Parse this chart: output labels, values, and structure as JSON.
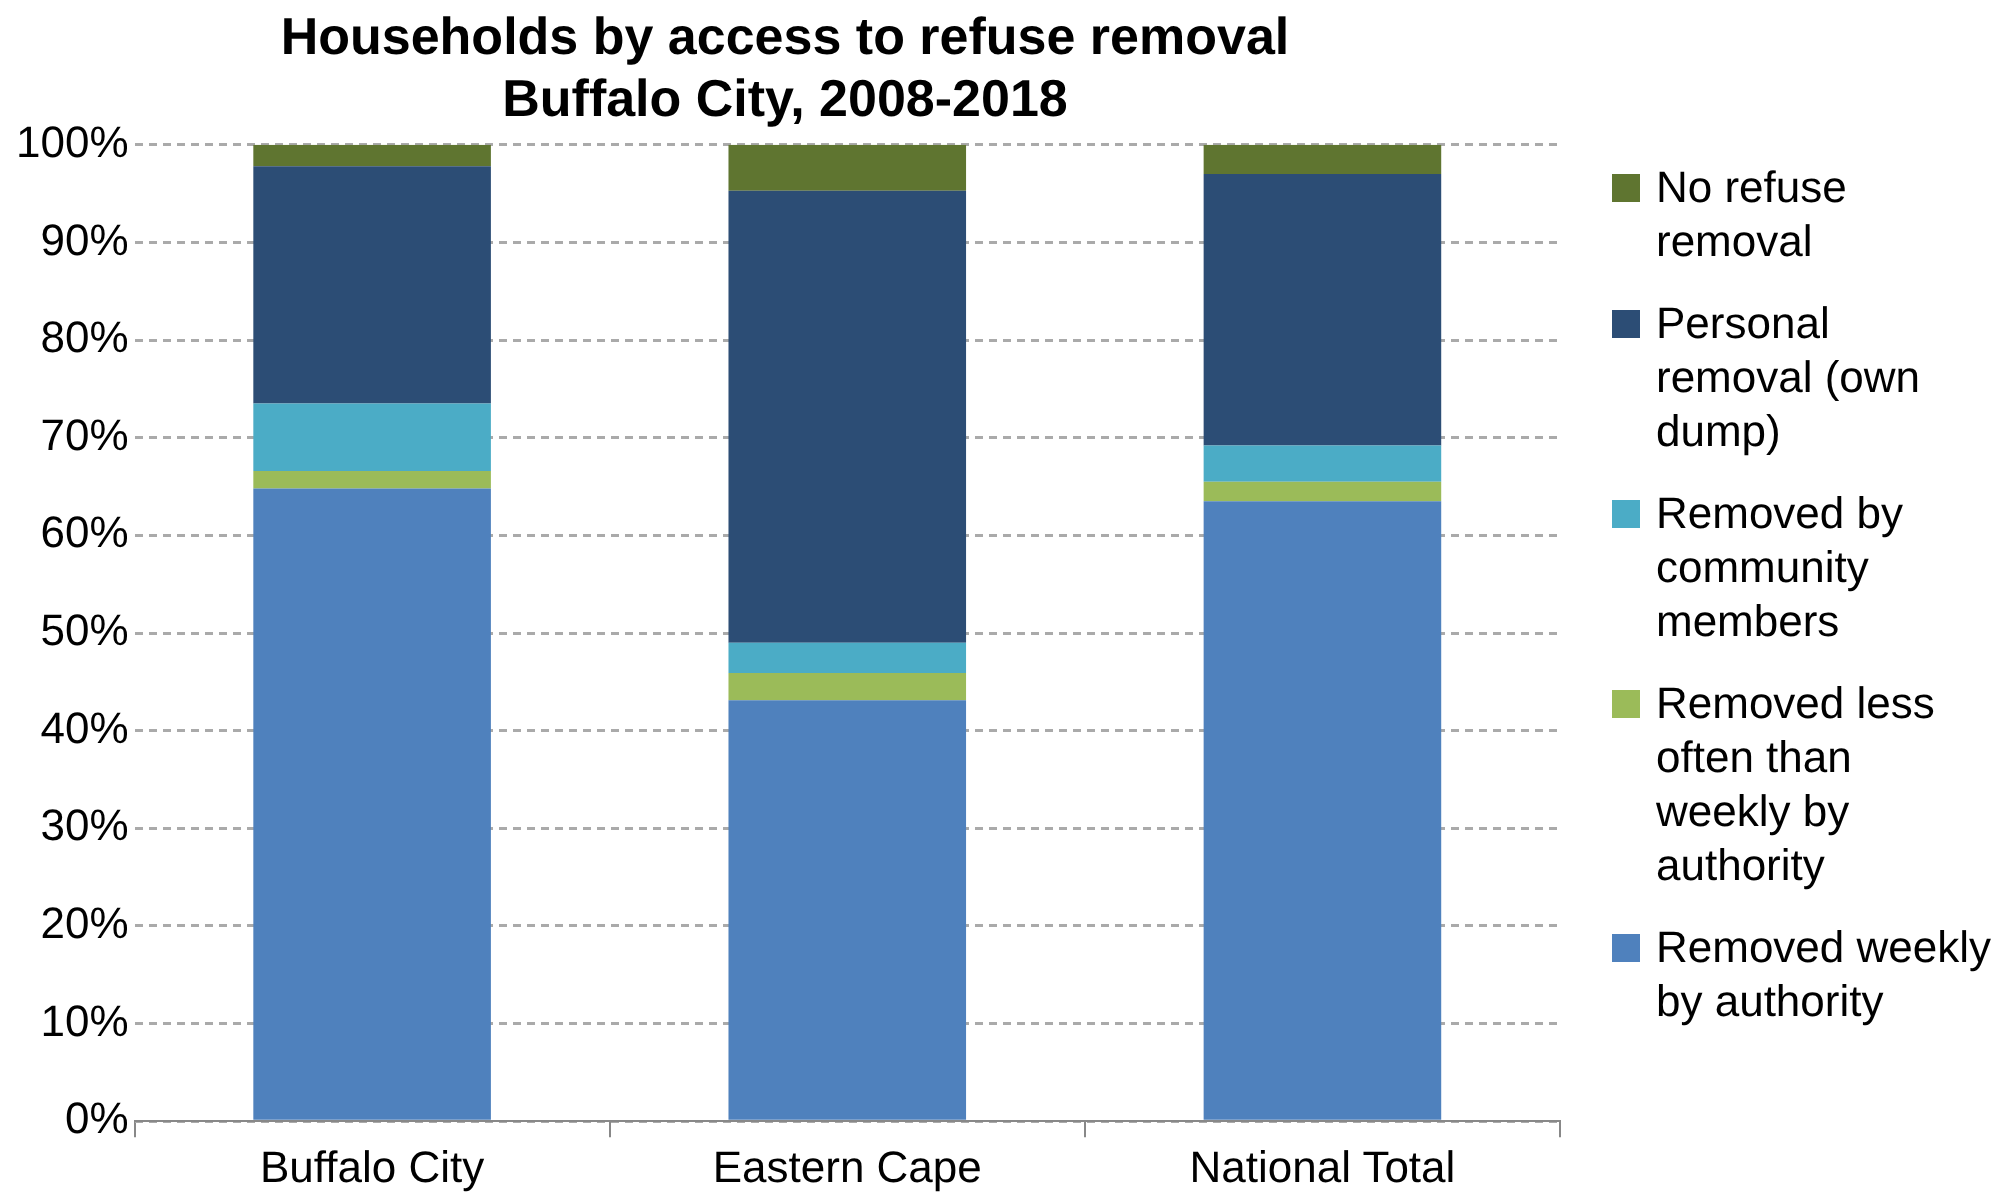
{
  "chart_data": {
    "type": "bar",
    "title": "Households by access to refuse removal\nBuffalo City, 2008-2018",
    "categories": [
      "Buffalo City",
      "Eastern Cape",
      "National Total"
    ],
    "stacked": true,
    "ylim": [
      0,
      100
    ],
    "yticks": [
      {
        "value": 0,
        "label": "0%"
      },
      {
        "value": 10,
        "label": "10%"
      },
      {
        "value": 20,
        "label": "20%"
      },
      {
        "value": 30,
        "label": "30%"
      },
      {
        "value": 40,
        "label": "40%"
      },
      {
        "value": 50,
        "label": "50%"
      },
      {
        "value": 60,
        "label": "60%"
      },
      {
        "value": 70,
        "label": "70%"
      },
      {
        "value": 80,
        "label": "80%"
      },
      {
        "value": 90,
        "label": "90%"
      },
      {
        "value": 100,
        "label": "100%"
      }
    ],
    "grid": "y",
    "legend": "right",
    "series": [
      {
        "name": "Removed weekly by authority",
        "color": "#4f81bd",
        "values": [
          64.8,
          43.1,
          63.5
        ]
      },
      {
        "name": "Removed less often than weekly by authority",
        "color": "#9bbb59",
        "values": [
          1.8,
          2.8,
          2.0
        ]
      },
      {
        "name": "Removed by community members",
        "color": "#4bacc6",
        "values": [
          6.9,
          3.1,
          3.7
        ]
      },
      {
        "name": "Personal removal (own dump)",
        "color": "#2c4d75",
        "values": [
          24.3,
          46.3,
          27.8
        ]
      },
      {
        "name": "No refuse removal",
        "color": "#5f7530",
        "values": [
          2.2,
          4.7,
          3.0
        ]
      }
    ]
  }
}
